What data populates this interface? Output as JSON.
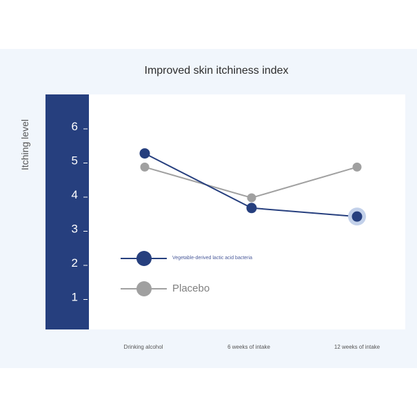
{
  "chart_data": {
    "type": "line",
    "title": "Improved skin itchiness index",
    "ylabel": "Itching level",
    "xlabel": "",
    "categories": [
      "Drinking alcohol",
      "6 weeks of intake",
      "12 weeks of intake"
    ],
    "yticks": [
      1,
      2,
      3,
      4,
      5,
      6
    ],
    "ylim": [
      0,
      6.8
    ],
    "series": [
      {
        "name": "Vegetable-derived lactic acid bacteria",
        "values": [
          5.2,
          3.6,
          3.35
        ],
        "color": "#263f7e"
      },
      {
        "name": "Placebo",
        "values": [
          4.8,
          3.9,
          4.8
        ],
        "color": "#a0a0a0"
      }
    ],
    "legend": "inside-lower-left",
    "grid": false
  },
  "colors": {
    "background_panel": "#f1f6fc",
    "axis_band": "#263f7e",
    "plot_area": "#ffffff"
  }
}
